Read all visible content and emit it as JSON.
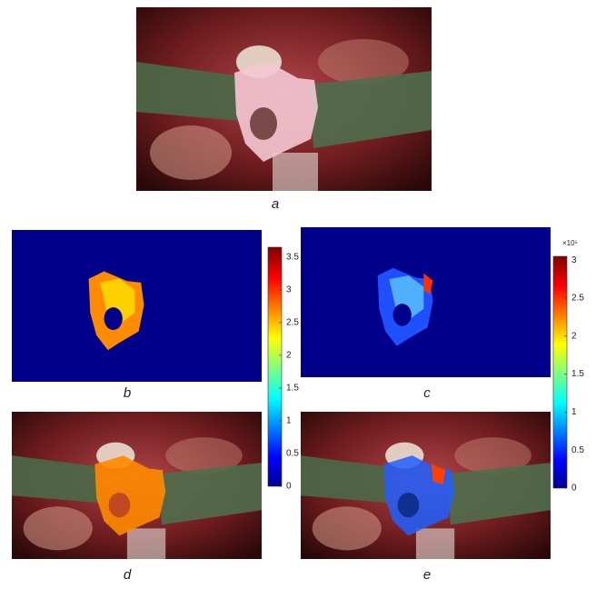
{
  "panels": {
    "a": {
      "label": "a"
    },
    "b": {
      "label": "b"
    },
    "c": {
      "label": "c"
    },
    "d": {
      "label": "d"
    },
    "e": {
      "label": "e"
    }
  },
  "colorbars": [
    {
      "ylim": [
        0,
        3.65
      ],
      "yticks": [
        0,
        0.5,
        1,
        1.5,
        2,
        2.5,
        3,
        3.5
      ]
    },
    {
      "ylim": [
        0,
        3.05
      ],
      "yticks": [
        0,
        0.5,
        1,
        1.5,
        2,
        2.5,
        3
      ],
      "exponent_label": "×10⁵"
    }
  ]
}
